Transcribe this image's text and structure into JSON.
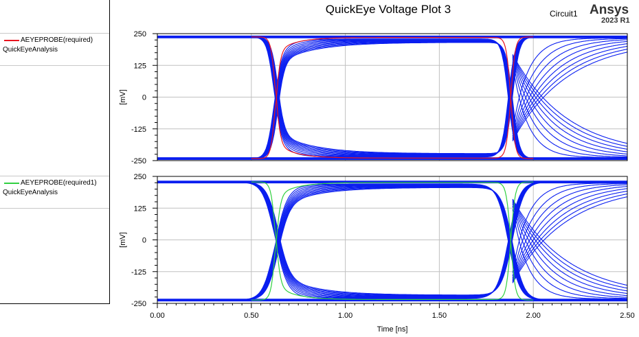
{
  "title": "QuickEye Voltage Plot 3",
  "design": "Circuit1",
  "brand": {
    "name": "Ansys",
    "version": "2023 R1"
  },
  "legend": [
    {
      "name": "AEYEPROBE(required)",
      "analysis": "QuickEyeAnalysis",
      "color": "#e8141e"
    },
    {
      "name": "AEYEPROBE(required1)",
      "analysis": "QuickEyeAnalysis",
      "color": "#30d040"
    }
  ],
  "colors": {
    "eye_trace": "#0a1ef0",
    "grid": "#c0c0c0"
  },
  "chart_data": [
    {
      "type": "line",
      "title": "QuickEye Voltage Plot 3",
      "xlabel": "",
      "ylabel": "[mV]",
      "xlim": [
        0,
        2.5
      ],
      "ylim": [
        -250,
        250
      ],
      "y_ticks": [
        250,
        125,
        0,
        -125,
        -250
      ],
      "grid": true,
      "unit_interval_ns": 1.25,
      "eye_crossings_ns": [
        0.63,
        1.88
      ],
      "rise_start_ns": 0.55,
      "levels_mV": [
        237,
        -242
      ],
      "series": [
        {
          "name": "AEYEPROBE(required)",
          "color": "#e8141e",
          "type": "eye-diagram"
        }
      ]
    },
    {
      "type": "line",
      "title": "",
      "xlabel": "Time [ns]",
      "ylabel": "[mV]",
      "xlim": [
        0,
        2.5
      ],
      "ylim": [
        -250,
        250
      ],
      "x_ticks": [
        "0.00",
        "0.50",
        "1.00",
        "1.50",
        "2.00",
        "2.50"
      ],
      "y_ticks": [
        250,
        125,
        0,
        -125,
        -250
      ],
      "grid": true,
      "unit_interval_ns": 1.25,
      "eye_crossings_ns": [
        0.63,
        1.88
      ],
      "rise_start_ns": 0.55,
      "levels_mV": [
        228,
        -237
      ],
      "series": [
        {
          "name": "AEYEPROBE(required1)",
          "color": "#30d040",
          "type": "eye-diagram"
        }
      ]
    }
  ]
}
